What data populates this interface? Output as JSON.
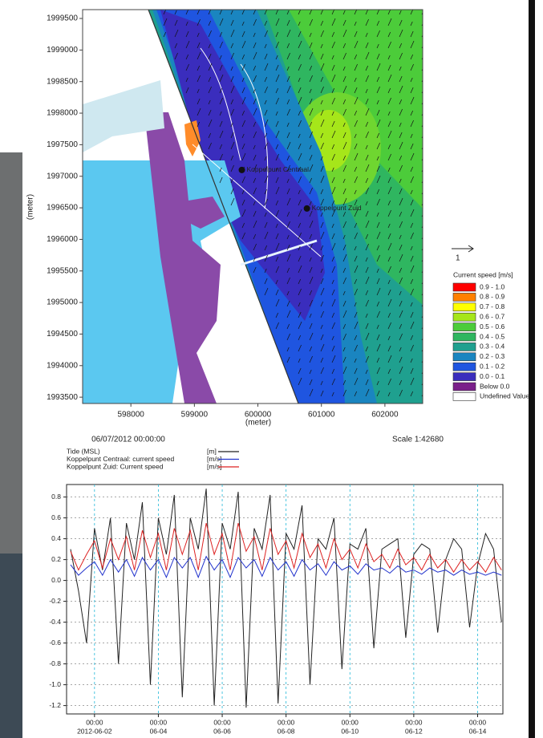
{
  "chart_data": [
    {
      "type": "contour-map",
      "xlabel": "(meter)",
      "ylabel": "(meter)",
      "xlim": [
        597240,
        602595
      ],
      "ylim": [
        1993400,
        1999640
      ],
      "xticks": [
        598000,
        599000,
        600000,
        601000,
        602000
      ],
      "yticks": [
        1993500,
        1994000,
        1994500,
        1995000,
        1995500,
        1996000,
        1996500,
        1997000,
        1997500,
        1998000,
        1998500,
        1999000,
        1999500
      ],
      "points": [
        {
          "name": "Koppelpunt Centraal",
          "x": 599747,
          "y": 1997100
        },
        {
          "name": "Koppelpunt Zuid",
          "x": 600772,
          "y": 1996490
        }
      ],
      "timestamp": "06/07/2012 00:00:00",
      "scale": "Scale 1:42680",
      "vector_scale": "1",
      "legend_title": "Current speed [m/s]",
      "legend": [
        {
          "name": "0.9 - 1.0",
          "color": "#ff0000"
        },
        {
          "name": "0.8 - 0.9",
          "color": "#ff8000"
        },
        {
          "name": "0.7 - 0.8",
          "color": "#ffff00"
        },
        {
          "name": "0.6 - 0.7",
          "color": "#a6e61a"
        },
        {
          "name": "0.5 - 0.6",
          "color": "#4ccc3a"
        },
        {
          "name": "0.4 - 0.5",
          "color": "#2fb660"
        },
        {
          "name": "0.3 - 0.4",
          "color": "#1fa08f"
        },
        {
          "name": "0.2 - 0.3",
          "color": "#1a85c0"
        },
        {
          "name": "0.1 - 0.2",
          "color": "#1f55e0"
        },
        {
          "name": "0.0 - 0.1",
          "color": "#3a2dbd"
        },
        {
          "name": "Below 0.0",
          "color": "#7a1f8a"
        },
        {
          "name": "Undefined Value",
          "color": "#ffffff"
        }
      ]
    },
    {
      "type": "line",
      "x": [
        "2012-06-01 06:00",
        "2012-06-01 12:00",
        "2012-06-01 18:00",
        "2012-06-02 00:00",
        "2012-06-02 06:00",
        "2012-06-02 12:00",
        "2012-06-02 18:00",
        "2012-06-03 00:00",
        "2012-06-03 06:00",
        "2012-06-03 12:00",
        "2012-06-03 18:00",
        "2012-06-04 00:00",
        "2012-06-04 06:00",
        "2012-06-04 12:00",
        "2012-06-04 18:00",
        "2012-06-05 00:00",
        "2012-06-05 06:00",
        "2012-06-05 12:00",
        "2012-06-05 18:00",
        "2012-06-06 00:00",
        "2012-06-06 06:00",
        "2012-06-06 12:00",
        "2012-06-06 18:00",
        "2012-06-07 00:00",
        "2012-06-07 06:00",
        "2012-06-07 12:00",
        "2012-06-07 18:00",
        "2012-06-08 00:00",
        "2012-06-08 06:00",
        "2012-06-08 12:00",
        "2012-06-08 18:00",
        "2012-06-09 00:00",
        "2012-06-09 06:00",
        "2012-06-09 12:00",
        "2012-06-09 18:00",
        "2012-06-10 00:00",
        "2012-06-10 06:00",
        "2012-06-10 12:00",
        "2012-06-10 18:00",
        "2012-06-11 00:00",
        "2012-06-11 06:00",
        "2012-06-11 12:00",
        "2012-06-11 18:00",
        "2012-06-12 00:00",
        "2012-06-12 06:00",
        "2012-06-12 12:00",
        "2012-06-12 18:00",
        "2012-06-13 00:00",
        "2012-06-13 06:00",
        "2012-06-13 12:00",
        "2012-06-13 18:00",
        "2012-06-14 00:00",
        "2012-06-14 06:00",
        "2012-06-14 12:00",
        "2012-06-14 18:00"
      ],
      "xlim": [
        "2012-06-01 03:00",
        "2012-06-14 19:00"
      ],
      "xticks": [
        {
          "value": "2012-06-02 00:00",
          "label": [
            "00:00",
            "2012-06-02"
          ]
        },
        {
          "value": "2012-06-04 00:00",
          "label": [
            "00:00",
            "06-04"
          ]
        },
        {
          "value": "2012-06-06 00:00",
          "label": [
            "00:00",
            "06-06"
          ]
        },
        {
          "value": "2012-06-08 00:00",
          "label": [
            "00:00",
            "06-08"
          ]
        },
        {
          "value": "2012-06-10 00:00",
          "label": [
            "00:00",
            "06-10"
          ]
        },
        {
          "value": "2012-06-12 00:00",
          "label": [
            "00:00",
            "06-12"
          ]
        },
        {
          "value": "2012-06-14 00:00",
          "label": [
            "00:00",
            "06-14"
          ]
        }
      ],
      "ylim": [
        -1.28,
        0.92
      ],
      "yticks": [
        0.8,
        0.6,
        0.4,
        0.2,
        {
          "value": 0,
          "label": "0.0"
        },
        -0.2,
        -0.4,
        -0.6,
        -0.8,
        {
          "value": -1,
          "label": "-1.0"
        },
        -1.2
      ],
      "grid": true,
      "series": [
        {
          "name": "Tide (MSL)",
          "unit": "[m]",
          "color": "#222222",
          "values": [
            0.3,
            -0.1,
            -0.6,
            0.5,
            0.1,
            0.6,
            -0.8,
            0.55,
            0.2,
            0.75,
            -1.0,
            0.6,
            0.25,
            0.82,
            -1.12,
            0.6,
            0.3,
            0.88,
            -1.2,
            0.55,
            0.3,
            0.85,
            -1.22,
            0.5,
            0.3,
            0.82,
            -1.18,
            0.45,
            0.3,
            0.72,
            -1.0,
            0.4,
            0.3,
            0.6,
            -0.85,
            0.35,
            0.3,
            0.5,
            -0.65,
            0.3,
            0.35,
            0.4,
            -0.55,
            0.25,
            0.35,
            0.3,
            -0.5,
            0.2,
            0.4,
            0.3,
            -0.45,
            0.15,
            0.45,
            0.3,
            -0.4
          ]
        },
        {
          "name": "Koppelpunt Centraal: current speed",
          "unit": "[m/s]",
          "color": "#2233cc",
          "values": [
            0.15,
            0.05,
            0.12,
            0.18,
            0.05,
            0.2,
            0.08,
            0.2,
            0.04,
            0.22,
            0.1,
            0.2,
            0.03,
            0.22,
            0.12,
            0.22,
            0.03,
            0.23,
            0.1,
            0.2,
            0.03,
            0.22,
            0.12,
            0.2,
            0.04,
            0.22,
            0.1,
            0.18,
            0.04,
            0.2,
            0.1,
            0.16,
            0.05,
            0.18,
            0.1,
            0.14,
            0.06,
            0.16,
            0.1,
            0.12,
            0.07,
            0.14,
            0.08,
            0.1,
            0.06,
            0.12,
            0.08,
            0.1,
            0.05,
            0.1,
            0.06,
            0.08,
            0.05,
            0.08,
            0.05
          ]
        },
        {
          "name": "Koppelpunt Zuid: Current speed",
          "unit": "[m/s]",
          "color": "#dd2222",
          "values": [
            0.28,
            0.1,
            0.25,
            0.38,
            0.12,
            0.4,
            0.2,
            0.42,
            0.1,
            0.48,
            0.22,
            0.45,
            0.1,
            0.5,
            0.25,
            0.48,
            0.1,
            0.55,
            0.25,
            0.45,
            0.1,
            0.55,
            0.28,
            0.42,
            0.1,
            0.5,
            0.25,
            0.38,
            0.12,
            0.45,
            0.22,
            0.35,
            0.12,
            0.4,
            0.2,
            0.3,
            0.12,
            0.35,
            0.18,
            0.25,
            0.12,
            0.3,
            0.15,
            0.22,
            0.1,
            0.25,
            0.12,
            0.2,
            0.08,
            0.2,
            0.1,
            0.18,
            0.08,
            0.22,
            0.1
          ]
        }
      ]
    }
  ]
}
